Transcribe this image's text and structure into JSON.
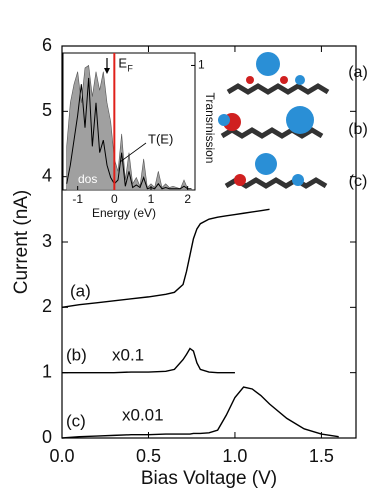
{
  "chart_data": [
    {
      "type": "line",
      "x_label": "Bias Voltage (V)",
      "y_label": "Current (nA)",
      "x": [
        0,
        0.1,
        0.2,
        0.3,
        0.4,
        0.5,
        0.6,
        0.65,
        0.7,
        0.72,
        0.74,
        0.76,
        0.78,
        0.8,
        0.85,
        0.9,
        0.95,
        1.0,
        1.05,
        1.1,
        1.15,
        1.2,
        1.3,
        1.4,
        1.5,
        1.6
      ],
      "series": [
        {
          "name": "(a)",
          "color": "#000000",
          "values": [
            2.0,
            2.04,
            2.07,
            2.1,
            2.13,
            2.16,
            2.2,
            2.23,
            2.35,
            2.55,
            2.8,
            3.05,
            3.2,
            3.28,
            3.35,
            3.38,
            3.4,
            3.42,
            3.44,
            3.46,
            3.48,
            3.5,
            null,
            null,
            null,
            null
          ]
        },
        {
          "name": "(b)",
          "scale_label": "x0.1",
          "color": "#000000",
          "values": [
            1.0,
            1.0,
            1.0,
            1.0,
            1.01,
            1.01,
            1.02,
            1.05,
            1.2,
            1.28,
            1.37,
            1.33,
            1.15,
            1.05,
            1.01,
            1.0,
            1.0,
            1.0,
            null,
            null,
            null,
            null,
            null,
            null,
            null,
            null
          ]
        },
        {
          "name": "(c)",
          "scale_label": "x0.01",
          "color": "#000000",
          "values": [
            0,
            0.02,
            0.03,
            0.04,
            0.05,
            0.05,
            0.06,
            0.06,
            0.06,
            0.06,
            0.06,
            0.07,
            0.07,
            0.07,
            0.08,
            0.12,
            0.35,
            0.62,
            0.78,
            0.75,
            0.65,
            0.52,
            0.3,
            0.14,
            0.06,
            0.02
          ]
        }
      ],
      "xlim": [
        0,
        1.7
      ],
      "xticks": [
        {
          "value": 0,
          "label": "0.0"
        },
        {
          "value": 0.5,
          "label": "0.5"
        },
        {
          "value": 1,
          "label": "1.0"
        },
        {
          "value": 1.5,
          "label": "1.5"
        }
      ],
      "ylim": [
        0,
        6
      ],
      "yticks": [
        0,
        1,
        2,
        3,
        4,
        5,
        6
      ],
      "structure_labels": [
        "(a)",
        "(b)",
        "(c)"
      ]
    },
    {
      "type": "line",
      "x_label": "Energy (eV)",
      "y2_label": "Transmission",
      "x": [
        -1.3,
        -1.2,
        -1.1,
        -1.0,
        -0.9,
        -0.8,
        -0.7,
        -0.6,
        -0.5,
        -0.4,
        -0.3,
        -0.2,
        -0.1,
        0,
        0.1,
        0.2,
        0.3,
        0.4,
        0.5,
        0.6,
        0.7,
        0.8,
        0.9,
        1.0,
        1.1,
        1.2,
        1.3,
        1.4,
        1.5,
        1.6,
        1.7,
        1.8,
        1.9,
        2.0,
        2.1
      ],
      "series": [
        {
          "name": "dos",
          "fill": true,
          "color": "#a0a0a0",
          "values": [
            0.35,
            0.7,
            0.85,
            0.95,
            0.7,
            0.98,
            1.0,
            0.75,
            0.95,
            0.8,
            0.95,
            0.7,
            0.55,
            0.25,
            0.15,
            0.45,
            0.08,
            0.3,
            0.05,
            0.1,
            0.03,
            0.25,
            0.02,
            0.05,
            0.02,
            0.15,
            0.02,
            0.05,
            0.02,
            0.03,
            0.02,
            0.01,
            0.08,
            0.01,
            0.01
          ]
        },
        {
          "name": "T(E)",
          "fill": false,
          "color": "#000000",
          "values": [
            0.05,
            0.2,
            0.4,
            0.6,
            0.85,
            0.5,
            0.9,
            0.35,
            0.7,
            0.3,
            0.4,
            0.2,
            0.1,
            0.05,
            0.08,
            0.3,
            0.03,
            0.15,
            0.02,
            0.04,
            0.02,
            0.1,
            0.01,
            0.02,
            0.01,
            0.05,
            0.01,
            0.02,
            0.01,
            0.01,
            0.01,
            0.01,
            0.03,
            0.01,
            0.01
          ]
        }
      ],
      "xlim": [
        -1.4,
        2.2
      ],
      "xticks": [
        -1,
        0,
        1,
        2
      ],
      "ylim": [
        0,
        1.1
      ],
      "y2ticks": [
        1
      ],
      "fermi_level": 0,
      "fermi_color": "#e0201a",
      "fermi_label": "E",
      "fermi_subscript": "F",
      "arrow_at": -0.2
    }
  ]
}
